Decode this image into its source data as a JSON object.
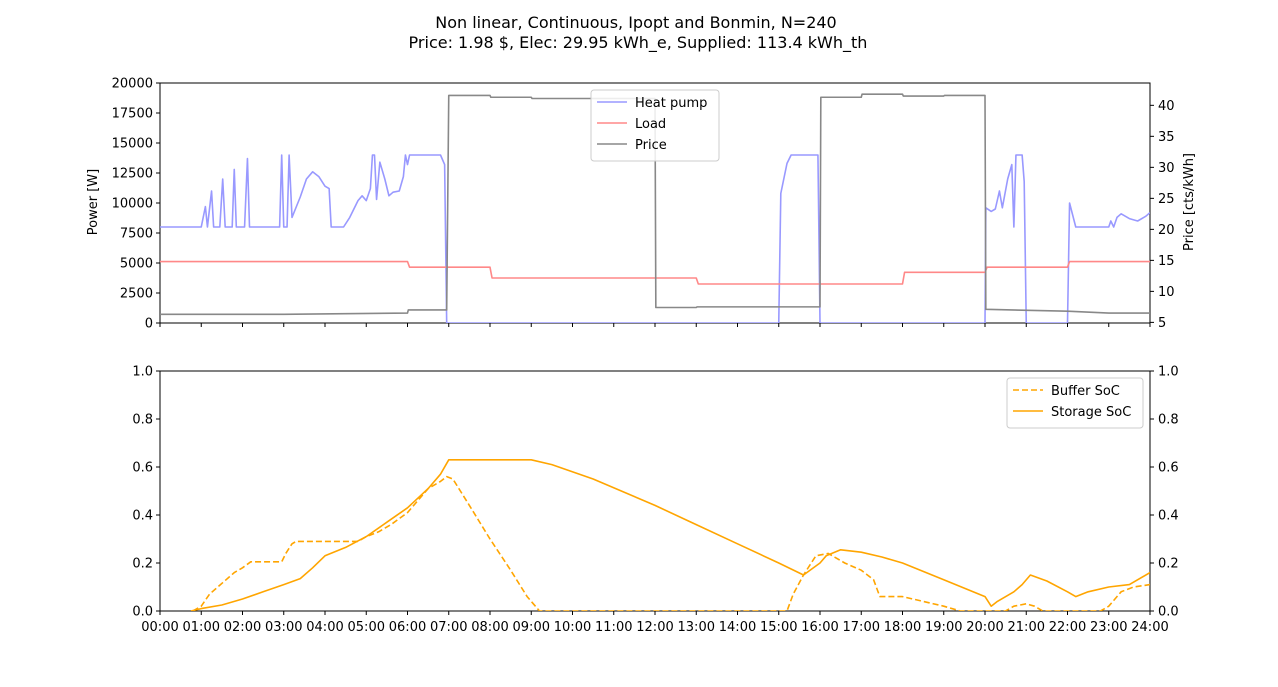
{
  "figure": {
    "title_line1": "Non linear, Continuous, Ipopt and Bonmin, N=240",
    "title_line2": "Price: 1.98 $, Elec: 29.95 kWh_e, Supplied: 113.4 kWh_th"
  },
  "chart_data": [
    {
      "type": "line",
      "ylabel": "Power [W]",
      "ylabel_right": "Price [cts/kWh]",
      "ylim": [
        0,
        20000
      ],
      "ylim_right": [
        4.9,
        43.6
      ],
      "xlim": [
        0,
        24
      ],
      "yticks": [
        "0",
        "2500",
        "5000",
        "7500",
        "10000",
        "12500",
        "15000",
        "17500",
        "20000"
      ],
      "yticks_right": [
        "5",
        "10",
        "15",
        "20",
        "25",
        "30",
        "35",
        "40"
      ],
      "legend_position": "upper center",
      "series": [
        {
          "name": "Heat pump",
          "axis": "left",
          "color": "#9999ff",
          "points": [
            [
              0,
              8000
            ],
            [
              1,
              8000
            ],
            [
              1.1,
              9700
            ],
            [
              1.15,
              8000
            ],
            [
              1.25,
              11000
            ],
            [
              1.3,
              8000
            ],
            [
              1.45,
              8000
            ],
            [
              1.52,
              12000
            ],
            [
              1.58,
              8000
            ],
            [
              1.75,
              8000
            ],
            [
              1.8,
              12800
            ],
            [
              1.85,
              8000
            ],
            [
              2.05,
              8000
            ],
            [
              2.12,
              13700
            ],
            [
              2.17,
              8000
            ],
            [
              2.9,
              8000
            ],
            [
              2.95,
              14000
            ],
            [
              3.0,
              8000
            ],
            [
              3.08,
              8000
            ],
            [
              3.13,
              14000
            ],
            [
              3.2,
              8800
            ],
            [
              3.4,
              10500
            ],
            [
              3.55,
              12000
            ],
            [
              3.7,
              12600
            ],
            [
              3.85,
              12200
            ],
            [
              4.0,
              11400
            ],
            [
              4.1,
              11200
            ],
            [
              4.15,
              8000
            ],
            [
              4.45,
              8000
            ],
            [
              4.6,
              8800
            ],
            [
              4.8,
              10200
            ],
            [
              4.9,
              10600
            ],
            [
              5.0,
              10200
            ],
            [
              5.1,
              11200
            ],
            [
              5.15,
              14000
            ],
            [
              5.2,
              14000
            ],
            [
              5.25,
              10300
            ],
            [
              5.33,
              13400
            ],
            [
              5.45,
              12000
            ],
            [
              5.55,
              10600
            ],
            [
              5.65,
              10900
            ],
            [
              5.8,
              11000
            ],
            [
              5.9,
              12200
            ],
            [
              5.95,
              14000
            ],
            [
              6.0,
              13200
            ],
            [
              6.05,
              14000
            ],
            [
              6.8,
              14000
            ],
            [
              6.9,
              13200
            ],
            [
              6.95,
              0
            ],
            [
              15.0,
              0
            ],
            [
              15.05,
              10800
            ],
            [
              15.2,
              13300
            ],
            [
              15.3,
              14000
            ],
            [
              15.95,
              14000
            ],
            [
              16.0,
              0
            ],
            [
              20.0,
              0
            ],
            [
              20.02,
              9600
            ],
            [
              20.15,
              9300
            ],
            [
              20.25,
              9500
            ],
            [
              20.35,
              11000
            ],
            [
              20.42,
              9600
            ],
            [
              20.55,
              12000
            ],
            [
              20.65,
              13200
            ],
            [
              20.7,
              8000
            ],
            [
              20.75,
              14000
            ],
            [
              20.9,
              14000
            ],
            [
              20.95,
              11800
            ],
            [
              21.0,
              0
            ],
            [
              22.0,
              0
            ],
            [
              22.05,
              10000
            ],
            [
              22.2,
              8000
            ],
            [
              22.8,
              8000
            ],
            [
              23.0,
              8000
            ],
            [
              23.05,
              8500
            ],
            [
              23.12,
              8000
            ],
            [
              23.2,
              8800
            ],
            [
              23.3,
              9100
            ],
            [
              23.5,
              8700
            ],
            [
              23.7,
              8500
            ],
            [
              23.9,
              8900
            ],
            [
              24,
              9200
            ]
          ]
        },
        {
          "name": "Load",
          "axis": "left",
          "color": "#ff8888",
          "points": [
            [
              0,
              5120
            ],
            [
              6.0,
              5120
            ],
            [
              6.05,
              4650
            ],
            [
              8.0,
              4650
            ],
            [
              8.05,
              3750
            ],
            [
              13.0,
              3750
            ],
            [
              13.05,
              3250
            ],
            [
              18.0,
              3250
            ],
            [
              18.05,
              4220
            ],
            [
              20.0,
              4220
            ],
            [
              20.05,
              4650
            ],
            [
              22.0,
              4650
            ],
            [
              22.05,
              5120
            ],
            [
              24,
              5120
            ]
          ]
        },
        {
          "name": "Price",
          "axis": "right",
          "color": "#888888",
          "points": [
            [
              0,
              6.3
            ],
            [
              3,
              6.3
            ],
            [
              6,
              6.5
            ],
            [
              6.02,
              7.0
            ],
            [
              6.95,
              7.0
            ],
            [
              7.0,
              41.6
            ],
            [
              8.0,
              41.6
            ],
            [
              8.02,
              41.3
            ],
            [
              9.0,
              41.3
            ],
            [
              9.02,
              41.1
            ],
            [
              10.0,
              41.1
            ],
            [
              12.0,
              41.1
            ],
            [
              12.02,
              7.4
            ],
            [
              13.0,
              7.4
            ],
            [
              13.02,
              7.5
            ],
            [
              16.0,
              7.5
            ],
            [
              16.02,
              41.3
            ],
            [
              17.0,
              41.3
            ],
            [
              17.02,
              41.8
            ],
            [
              18.0,
              41.8
            ],
            [
              18.02,
              41.5
            ],
            [
              19.0,
              41.5
            ],
            [
              19.02,
              41.6
            ],
            [
              20.0,
              41.6
            ],
            [
              20.02,
              7.1
            ],
            [
              22.0,
              6.8
            ],
            [
              23.0,
              6.5
            ],
            [
              24,
              6.5
            ]
          ]
        }
      ]
    },
    {
      "type": "line",
      "ylim": [
        0,
        1
      ],
      "xlim": [
        0,
        24
      ],
      "yticks": [
        "0.0",
        "0.2",
        "0.4",
        "0.6",
        "0.8",
        "1.0"
      ],
      "yticks_right": [
        "0.0",
        "0.2",
        "0.4",
        "0.6",
        "0.8",
        "1.0"
      ],
      "xticks": [
        "00:00",
        "01:00",
        "02:00",
        "03:00",
        "04:00",
        "05:00",
        "06:00",
        "07:00",
        "08:00",
        "09:00",
        "10:00",
        "11:00",
        "12:00",
        "13:00",
        "14:00",
        "15:00",
        "16:00",
        "17:00",
        "18:00",
        "19:00",
        "20:00",
        "21:00",
        "22:00",
        "23:00",
        "24:00"
      ],
      "legend_position": "upper right",
      "series": [
        {
          "name": "Buffer SoC",
          "color": "#ffa500",
          "dashed": true,
          "points": [
            [
              0.8,
              0
            ],
            [
              1.0,
              0.02
            ],
            [
              1.2,
              0.07
            ],
            [
              1.4,
              0.1
            ],
            [
              1.6,
              0.13
            ],
            [
              1.8,
              0.16
            ],
            [
              2.0,
              0.18
            ],
            [
              2.2,
              0.205
            ],
            [
              2.95,
              0.205
            ],
            [
              3.05,
              0.24
            ],
            [
              3.2,
              0.28
            ],
            [
              3.3,
              0.29
            ],
            [
              4.2,
              0.29
            ],
            [
              4.8,
              0.29
            ],
            [
              5.0,
              0.31
            ],
            [
              5.3,
              0.33
            ],
            [
              5.6,
              0.36
            ],
            [
              6.0,
              0.41
            ],
            [
              6.3,
              0.47
            ],
            [
              6.5,
              0.51
            ],
            [
              6.8,
              0.54
            ],
            [
              6.95,
              0.56
            ],
            [
              7.1,
              0.55
            ],
            [
              7.5,
              0.44
            ],
            [
              8.0,
              0.3
            ],
            [
              8.5,
              0.17
            ],
            [
              8.9,
              0.06
            ],
            [
              9.1,
              0.02
            ],
            [
              9.2,
              0
            ],
            [
              15.2,
              0
            ],
            [
              15.35,
              0.07
            ],
            [
              15.6,
              0.15
            ],
            [
              15.9,
              0.23
            ],
            [
              16.2,
              0.24
            ],
            [
              16.6,
              0.2
            ],
            [
              17.0,
              0.17
            ],
            [
              17.3,
              0.13
            ],
            [
              17.45,
              0.06
            ],
            [
              18.0,
              0.06
            ],
            [
              18.5,
              0.04
            ],
            [
              19.0,
              0.02
            ],
            [
              19.4,
              0
            ],
            [
              20.5,
              0
            ],
            [
              20.7,
              0.02
            ],
            [
              21.0,
              0.03
            ],
            [
              21.2,
              0.02
            ],
            [
              21.4,
              0
            ],
            [
              22.8,
              0
            ],
            [
              23.0,
              0.02
            ],
            [
              23.3,
              0.08
            ],
            [
              23.6,
              0.1
            ],
            [
              24,
              0.11
            ]
          ]
        },
        {
          "name": "Storage SoC",
          "color": "#ffa500",
          "dashed": false,
          "points": [
            [
              0.75,
              0
            ],
            [
              1.0,
              0.01
            ],
            [
              1.5,
              0.025
            ],
            [
              2.0,
              0.05
            ],
            [
              2.5,
              0.08
            ],
            [
              3.0,
              0.11
            ],
            [
              3.4,
              0.135
            ],
            [
              3.7,
              0.18
            ],
            [
              4.0,
              0.23
            ],
            [
              4.5,
              0.265
            ],
            [
              5.0,
              0.31
            ],
            [
              5.5,
              0.37
            ],
            [
              6.0,
              0.43
            ],
            [
              6.5,
              0.51
            ],
            [
              6.8,
              0.57
            ],
            [
              7.0,
              0.63
            ],
            [
              9.0,
              0.63
            ],
            [
              9.5,
              0.61
            ],
            [
              10.5,
              0.55
            ],
            [
              12.0,
              0.44
            ],
            [
              13.0,
              0.36
            ],
            [
              14.0,
              0.28
            ],
            [
              15.0,
              0.2
            ],
            [
              15.6,
              0.15
            ],
            [
              16.0,
              0.2
            ],
            [
              16.15,
              0.23
            ],
            [
              16.5,
              0.255
            ],
            [
              17.0,
              0.245
            ],
            [
              17.5,
              0.225
            ],
            [
              18.0,
              0.2
            ],
            [
              19.0,
              0.13
            ],
            [
              20.0,
              0.06
            ],
            [
              20.15,
              0.02
            ],
            [
              20.3,
              0.04
            ],
            [
              20.7,
              0.08
            ],
            [
              20.9,
              0.11
            ],
            [
              21.1,
              0.15
            ],
            [
              21.5,
              0.125
            ],
            [
              22.0,
              0.08
            ],
            [
              22.2,
              0.06
            ],
            [
              22.5,
              0.08
            ],
            [
              23.0,
              0.1
            ],
            [
              23.5,
              0.11
            ],
            [
              24,
              0.16
            ]
          ]
        }
      ]
    }
  ]
}
